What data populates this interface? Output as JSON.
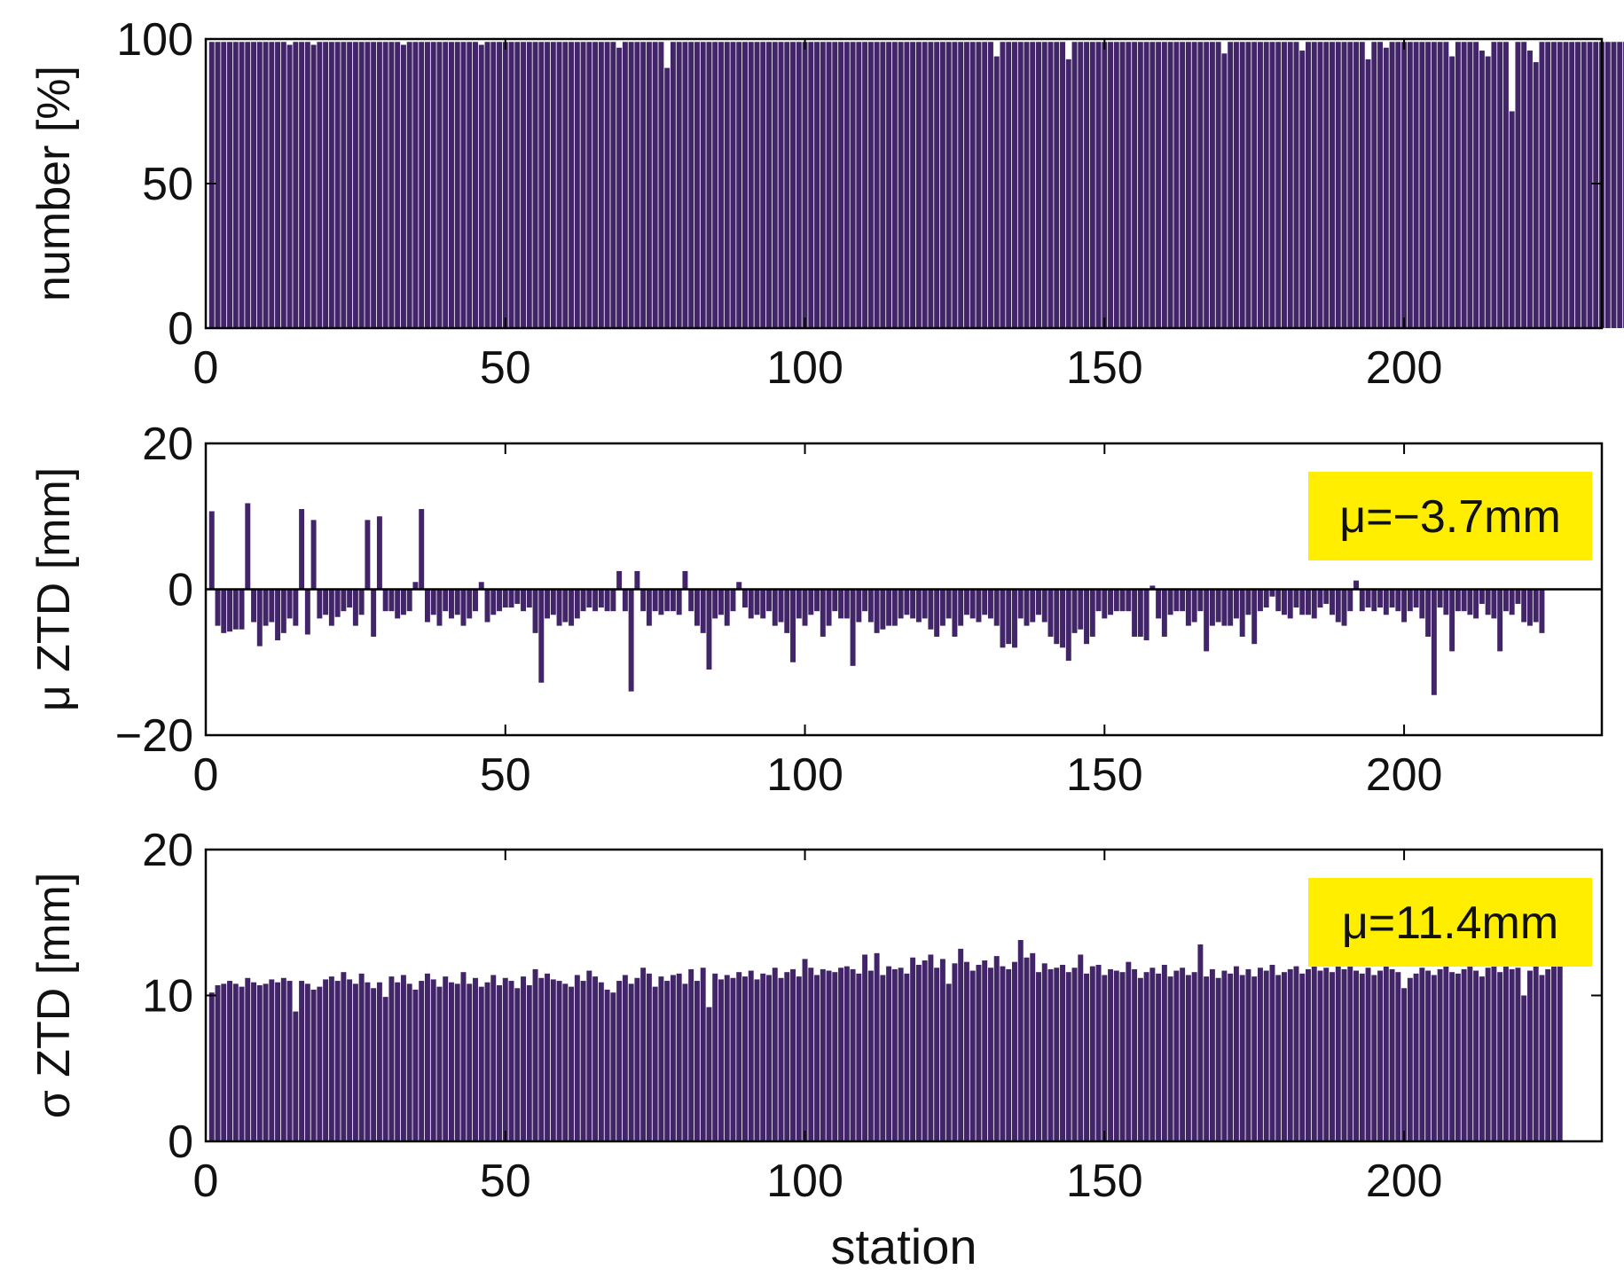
{
  "colors": {
    "bar": "#422568",
    "annotation_bg": "#ffee00",
    "axis": "#000000"
  },
  "chart_data": [
    {
      "type": "bar",
      "title": "",
      "xlabel": "",
      "ylabel": "number [%]",
      "xlim": [
        0,
        233
      ],
      "ylim": [
        0,
        100
      ],
      "xticks": [
        "0",
        "50",
        "100",
        "150",
        "200"
      ],
      "yticks": [
        "0",
        "50",
        "100"
      ],
      "annotation": "",
      "x_start": 1,
      "values": [
        99,
        99,
        99,
        99,
        99,
        99,
        99,
        99,
        99,
        99,
        99,
        99,
        99,
        98,
        99,
        99,
        99,
        98,
        99,
        99,
        99,
        99,
        99,
        99,
        99,
        99,
        99,
        99,
        99,
        99,
        99,
        99,
        98,
        99,
        99,
        99,
        99,
        99,
        99,
        99,
        99,
        99,
        99,
        99,
        99,
        98,
        99,
        99,
        99,
        99,
        99,
        99,
        99,
        99,
        99,
        99,
        99,
        99,
        99,
        99,
        99,
        99,
        99,
        99,
        99,
        99,
        99,
        99,
        97,
        99,
        99,
        99,
        99,
        99,
        99,
        99,
        90,
        99,
        99,
        99,
        99,
        99,
        99,
        99,
        99,
        99,
        99,
        99,
        99,
        99,
        99,
        99,
        99,
        99,
        99,
        99,
        99,
        99,
        99,
        99,
        99,
        99,
        99,
        99,
        99,
        99,
        99,
        99,
        99,
        99,
        99,
        99,
        99,
        99,
        99,
        99,
        99,
        99,
        99,
        99,
        99,
        99,
        99,
        99,
        99,
        99,
        99,
        99,
        99,
        99,
        99,
        94,
        99,
        99,
        99,
        99,
        99,
        99,
        99,
        99,
        99,
        99,
        99,
        93,
        99,
        99,
        99,
        99,
        99,
        99,
        99,
        99,
        99,
        99,
        99,
        99,
        99,
        99,
        99,
        99,
        99,
        99,
        99,
        99,
        99,
        99,
        99,
        99,
        99,
        95,
        99,
        99,
        99,
        99,
        99,
        99,
        99,
        99,
        99,
        99,
        99,
        99,
        96,
        99,
        99,
        99,
        99,
        99,
        99,
        99,
        99,
        99,
        99,
        93,
        99,
        99,
        97,
        99,
        99,
        99,
        99,
        99,
        99,
        99,
        99,
        99,
        99,
        94,
        99,
        99,
        99,
        99,
        96,
        94,
        99,
        99,
        99,
        75,
        99,
        99,
        96,
        92,
        99,
        99,
        99,
        99,
        99,
        99,
        99,
        99,
        99,
        99,
        99,
        99,
        99,
        99,
        99,
        99,
        99,
        99,
        99,
        99,
        99,
        99,
        99,
        99,
        99,
        99,
        99
      ]
    },
    {
      "type": "bar",
      "title": "",
      "xlabel": "",
      "ylabel": "μ ZTD [mm]",
      "xlim": [
        0,
        233
      ],
      "ylim": [
        -20,
        20
      ],
      "xticks": [
        "0",
        "50",
        "100",
        "150",
        "200"
      ],
      "yticks": [
        "−20",
        "0",
        "20"
      ],
      "annotation": "μ=−3.7mm",
      "x_start": 1,
      "values": [
        10.7,
        -5.0,
        -6.0,
        -5.8,
        -5.5,
        -5.5,
        11.8,
        -4.5,
        -7.8,
        -5.0,
        -4.5,
        -7.0,
        -6.0,
        -4.0,
        -5.0,
        11.0,
        -6.2,
        9.5,
        -4.0,
        -3.5,
        -5.0,
        -3.8,
        -3.0,
        -2.5,
        -5.0,
        -3.5,
        9.5,
        -6.5,
        10.0,
        -3.0,
        -3.0,
        -4.0,
        -3.5,
        -3.0,
        1.0,
        11.0,
        -4.5,
        -3.5,
        -5.0,
        -3.0,
        -4.0,
        -3.5,
        -5.0,
        -4.0,
        -3.0,
        1.0,
        -4.5,
        -3.5,
        -3.0,
        -2.5,
        -2.5,
        -2.0,
        -3.0,
        -2.5,
        -6.0,
        -12.8,
        -4.0,
        -3.5,
        -5.0,
        -4.5,
        -5.0,
        -4.0,
        -3.0,
        -2.5,
        -3.0,
        -2.5,
        -3.0,
        -3.0,
        2.5,
        -3.0,
        -14.0,
        2.5,
        -3.0,
        -5.0,
        -3.0,
        -3.5,
        -3.0,
        -3.0,
        -3.5,
        2.5,
        -3.0,
        -5.0,
        -6.0,
        -11.0,
        -4.0,
        -3.5,
        -5.0,
        -3.0,
        1.0,
        -2.5,
        -4.0,
        -3.5,
        -4.0,
        -3.0,
        -5.0,
        -4.5,
        -6.0,
        -10.0,
        -4.0,
        -5.0,
        -3.5,
        -3.0,
        -6.5,
        -5.0,
        -3.0,
        -4.0,
        -4.0,
        -10.5,
        -4.5,
        -3.0,
        -4.5,
        -6.0,
        -5.5,
        -5.0,
        -5.0,
        -4.0,
        -3.5,
        -4.0,
        -4.5,
        -4.0,
        -5.5,
        -6.5,
        -5.0,
        -4.0,
        -6.5,
        -5.0,
        -3.5,
        -4.0,
        -4.5,
        -3.5,
        -4.0,
        -5.0,
        -8.0,
        -7.5,
        -8.0,
        -4.0,
        -5.0,
        -4.5,
        -3.5,
        -4.5,
        -6.5,
        -7.5,
        -8.0,
        -9.8,
        -6.0,
        -5.5,
        -7.5,
        -6.5,
        -3.0,
        -4.0,
        -3.5,
        -3.0,
        -3.0,
        -3.0,
        -6.5,
        -6.5,
        -7.0,
        0.5,
        -4.0,
        -6.5,
        -3.5,
        -3.0,
        -3.0,
        -5.0,
        -4.5,
        -3.0,
        -8.5,
        -5.0,
        -4.5,
        -5.0,
        -5.0,
        -4.0,
        -6.5,
        -3.5,
        -7.5,
        -3.0,
        -2.5,
        -1.0,
        -3.0,
        -3.5,
        -4.0,
        -2.5,
        -3.5,
        -3.5,
        -4.0,
        -2.5,
        -2.0,
        -3.5,
        -4.5,
        -5.0,
        -3.0,
        1.2,
        -3.0,
        -2.5,
        -3.0,
        -2.5,
        -3.5,
        -2.5,
        -3.0,
        -4.5,
        -3.0,
        -2.5,
        -4.0,
        -6.5,
        -14.5,
        -2.5,
        -3.5,
        -8.5,
        -3.0,
        -3.0,
        -3.5,
        -4.0,
        -2.0,
        -3.5,
        -4.0,
        -8.5,
        -3.0,
        -3.5,
        -2.0,
        -4.5,
        -5.0,
        -4.5,
        -6.0
      ]
    },
    {
      "type": "bar",
      "title": "",
      "xlabel": "station",
      "ylabel": "σ ZTD [mm]",
      "xlim": [
        0,
        233
      ],
      "ylim": [
        0,
        20
      ],
      "xticks": [
        "0",
        "50",
        "100",
        "150",
        "200"
      ],
      "yticks": [
        "0",
        "10",
        "20"
      ],
      "annotation": "μ=11.4mm",
      "x_start": 1,
      "values": [
        10.2,
        10.7,
        10.8,
        11.0,
        10.8,
        10.6,
        11.2,
        10.9,
        10.7,
        10.8,
        11.1,
        10.9,
        11.2,
        11.0,
        8.9,
        11.0,
        10.8,
        10.4,
        10.6,
        11.1,
        11.3,
        11.0,
        11.6,
        11.1,
        10.8,
        11.5,
        10.9,
        10.5,
        10.9,
        9.9,
        11.3,
        10.9,
        11.4,
        10.8,
        10.4,
        11.0,
        11.5,
        11.1,
        10.6,
        11.3,
        10.9,
        10.8,
        11.6,
        10.8,
        11.2,
        10.6,
        10.9,
        11.4,
        10.7,
        11.2,
        11.0,
        10.5,
        11.3,
        10.7,
        11.8,
        11.2,
        11.5,
        11.1,
        11.0,
        10.8,
        10.6,
        11.4,
        11.0,
        11.7,
        11.3,
        10.9,
        10.4,
        10.2,
        11.0,
        11.4,
        10.8,
        11.2,
        11.9,
        11.5,
        10.6,
        11.3,
        11.0,
        11.4,
        11.5,
        10.8,
        11.8,
        11.0,
        11.9,
        9.2,
        11.5,
        11.1,
        11.4,
        11.2,
        11.6,
        11.3,
        11.7,
        11.1,
        11.5,
        11.4,
        11.9,
        11.2,
        11.6,
        11.8,
        11.3,
        12.5,
        11.9,
        11.4,
        11.8,
        11.7,
        11.6,
        11.9,
        12.0,
        11.8,
        11.5,
        12.8,
        11.7,
        12.9,
        11.4,
        12.0,
        11.8,
        11.9,
        11.5,
        12.6,
        12.1,
        12.4,
        12.8,
        11.9,
        12.5,
        10.8,
        12.2,
        13.2,
        12.3,
        11.7,
        12.1,
        12.4,
        11.9,
        12.7,
        12.0,
        11.8,
        12.3,
        13.8,
        12.6,
        12.9,
        11.6,
        12.2,
        11.8,
        11.9,
        12.1,
        11.6,
        11.9,
        12.8,
        11.5,
        12.0,
        12.1,
        11.4,
        11.8,
        11.7,
        11.6,
        12.3,
        11.8,
        11.2,
        11.6,
        11.9,
        11.5,
        12.1,
        11.3,
        11.7,
        11.9,
        11.4,
        11.6,
        13.5,
        11.3,
        11.8,
        11.2,
        11.7,
        11.5,
        12.0,
        11.4,
        11.8,
        11.3,
        11.9,
        11.7,
        12.1,
        11.4,
        11.6,
        11.8,
        12.0,
        11.5,
        11.8,
        12.2,
        11.7,
        11.9,
        11.6,
        12.0,
        11.8,
        12.3,
        11.7,
        11.5,
        11.9,
        11.4,
        11.7,
        12.0,
        11.8,
        11.6,
        10.5,
        11.2,
        11.5,
        11.9,
        11.7,
        11.4,
        11.8,
        12.1,
        11.6,
        11.5,
        11.8,
        12.0,
        11.7,
        11.3,
        11.9,
        12.1,
        11.6,
        12.2,
        11.8,
        11.9,
        10.0,
        11.7,
        12.0,
        11.4,
        11.8,
        13.5,
        12.6
      ]
    }
  ]
}
